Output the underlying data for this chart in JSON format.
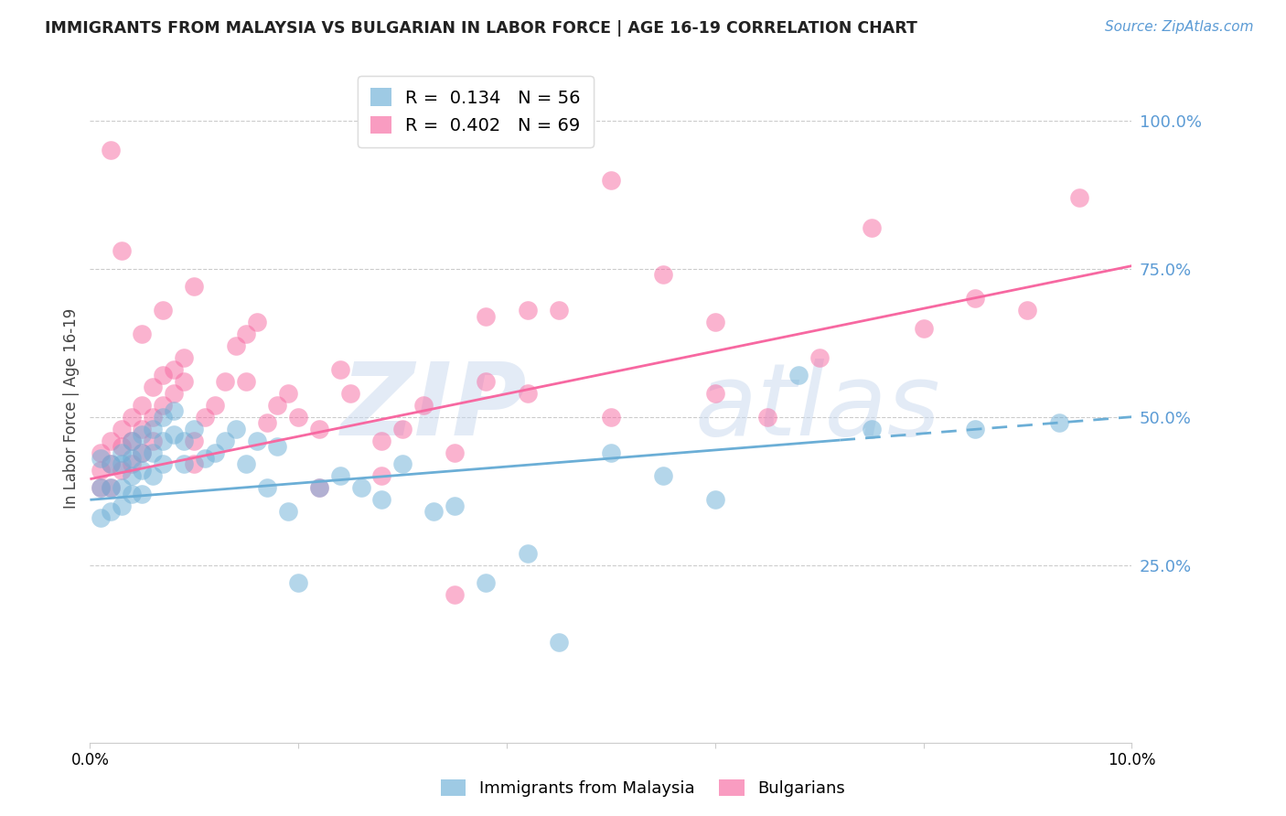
{
  "title": "IMMIGRANTS FROM MALAYSIA VS BULGARIAN IN LABOR FORCE | AGE 16-19 CORRELATION CHART",
  "source": "Source: ZipAtlas.com",
  "ylabel": "In Labor Force | Age 16-19",
  "legend_entries": [
    {
      "label": "R =  0.134   N = 56",
      "color": "#6baed6"
    },
    {
      "label": "R =  0.402   N = 69",
      "color": "#f768a1"
    }
  ],
  "legend_labels": [
    "Immigrants from Malaysia",
    "Bulgarians"
  ],
  "malaysia_color": "#6baed6",
  "bulgaria_color": "#f768a1",
  "xmin": 0.0,
  "xmax": 0.1,
  "ymin": 0.0,
  "ymax": 1.0,
  "ytick_values": [
    1.0,
    0.75,
    0.5,
    0.25
  ],
  "ytick_labels": [
    "100.0%",
    "75.0%",
    "50.0%",
    "25.0%"
  ],
  "malaysia_line_x": [
    0.0,
    0.1
  ],
  "malaysia_line_y": [
    0.36,
    0.5
  ],
  "bulgaria_line_x": [
    0.0,
    0.1
  ],
  "bulgaria_line_y": [
    0.395,
    0.755
  ],
  "malaysia_x": [
    0.001,
    0.001,
    0.001,
    0.002,
    0.002,
    0.002,
    0.003,
    0.003,
    0.003,
    0.003,
    0.004,
    0.004,
    0.004,
    0.004,
    0.005,
    0.005,
    0.005,
    0.005,
    0.006,
    0.006,
    0.006,
    0.007,
    0.007,
    0.007,
    0.008,
    0.008,
    0.009,
    0.009,
    0.01,
    0.011,
    0.012,
    0.013,
    0.014,
    0.015,
    0.016,
    0.017,
    0.018,
    0.019,
    0.02,
    0.022,
    0.024,
    0.026,
    0.028,
    0.03,
    0.033,
    0.035,
    0.038,
    0.042,
    0.045,
    0.05,
    0.055,
    0.06,
    0.068,
    0.075,
    0.085,
    0.093
  ],
  "malaysia_y": [
    0.43,
    0.38,
    0.33,
    0.42,
    0.38,
    0.34,
    0.44,
    0.42,
    0.38,
    0.35,
    0.46,
    0.43,
    0.4,
    0.37,
    0.47,
    0.44,
    0.41,
    0.37,
    0.48,
    0.44,
    0.4,
    0.5,
    0.46,
    0.42,
    0.51,
    0.47,
    0.46,
    0.42,
    0.48,
    0.43,
    0.44,
    0.46,
    0.48,
    0.42,
    0.46,
    0.38,
    0.45,
    0.34,
    0.22,
    0.38,
    0.4,
    0.38,
    0.36,
    0.42,
    0.34,
    0.35,
    0.22,
    0.27,
    0.12,
    0.44,
    0.4,
    0.36,
    0.57,
    0.48,
    0.48,
    0.49
  ],
  "bulgaria_x": [
    0.001,
    0.001,
    0.001,
    0.002,
    0.002,
    0.002,
    0.003,
    0.003,
    0.003,
    0.004,
    0.004,
    0.004,
    0.005,
    0.005,
    0.005,
    0.006,
    0.006,
    0.006,
    0.007,
    0.007,
    0.008,
    0.008,
    0.009,
    0.009,
    0.01,
    0.01,
    0.011,
    0.012,
    0.013,
    0.014,
    0.015,
    0.016,
    0.017,
    0.018,
    0.019,
    0.02,
    0.022,
    0.024,
    0.025,
    0.028,
    0.03,
    0.032,
    0.035,
    0.038,
    0.042,
    0.045,
    0.05,
    0.055,
    0.06,
    0.065,
    0.07,
    0.075,
    0.08,
    0.085,
    0.09,
    0.095,
    0.038,
    0.042,
    0.05,
    0.06,
    0.035,
    0.028,
    0.022,
    0.015,
    0.01,
    0.007,
    0.005,
    0.003,
    0.002
  ],
  "bulgaria_y": [
    0.44,
    0.41,
    0.38,
    0.46,
    0.42,
    0.38,
    0.48,
    0.45,
    0.41,
    0.5,
    0.46,
    0.42,
    0.52,
    0.48,
    0.44,
    0.55,
    0.5,
    0.46,
    0.57,
    0.52,
    0.58,
    0.54,
    0.6,
    0.56,
    0.46,
    0.42,
    0.5,
    0.52,
    0.56,
    0.62,
    0.64,
    0.66,
    0.49,
    0.52,
    0.54,
    0.5,
    0.48,
    0.58,
    0.54,
    0.46,
    0.48,
    0.52,
    0.44,
    0.56,
    0.54,
    0.68,
    0.5,
    0.74,
    0.66,
    0.5,
    0.6,
    0.82,
    0.65,
    0.7,
    0.68,
    0.87,
    0.67,
    0.68,
    0.9,
    0.54,
    0.2,
    0.4,
    0.38,
    0.56,
    0.72,
    0.68,
    0.64,
    0.78,
    0.95
  ]
}
